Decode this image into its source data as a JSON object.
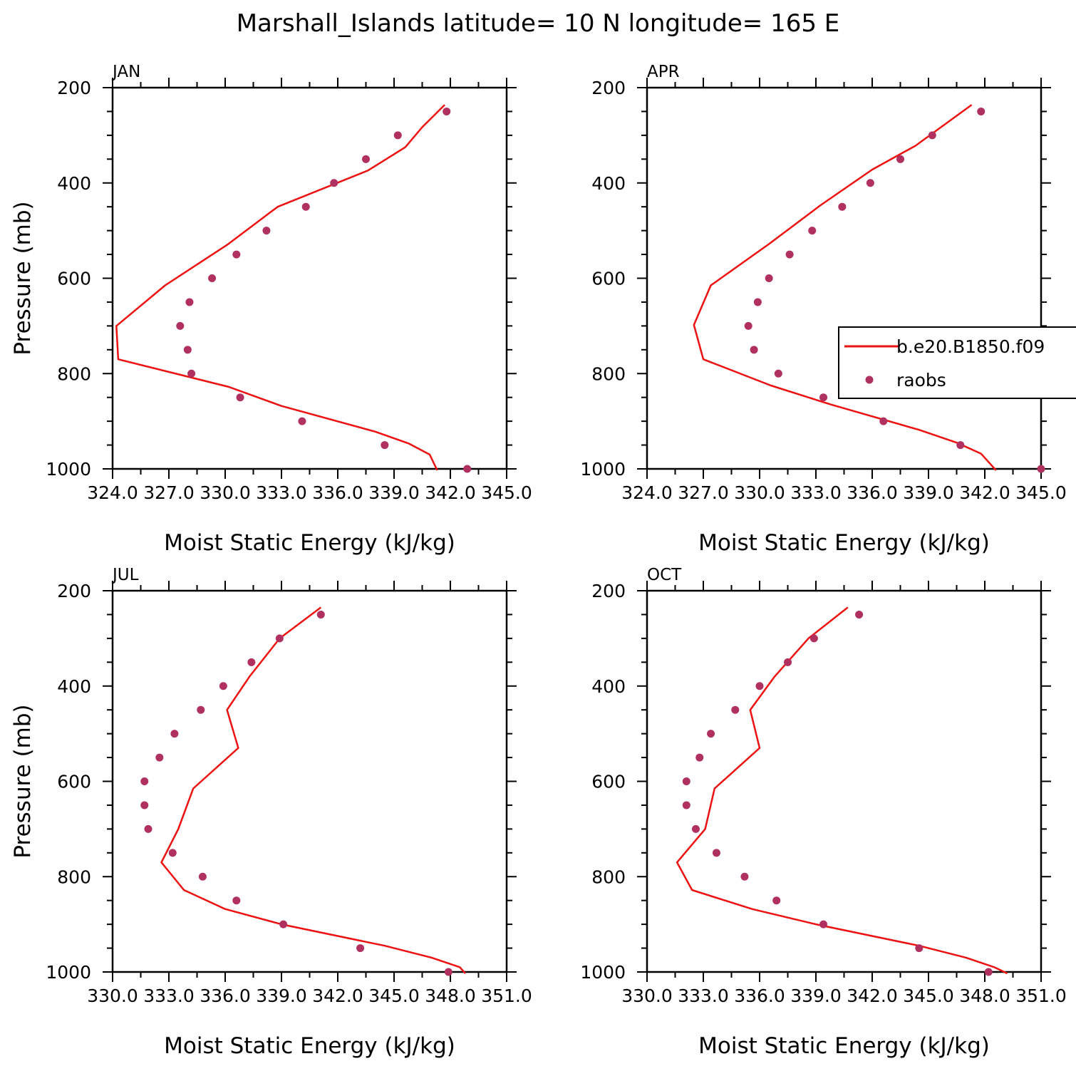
{
  "figure": {
    "title": "Marshall_Islands  latitude= 10 N longitude= 165 E"
  },
  "colors": {
    "model_line": "#ee1111",
    "obs_marker": "#b03060",
    "axis": "#000000"
  },
  "legend": {
    "placement": "right-middle of APR panel",
    "model_label": "b.e20.B1850.f09",
    "obs_label": "raobs"
  },
  "chart_data": [
    {
      "type": "line+scatter",
      "panel": "JAN",
      "title": "JAN",
      "xlabel": "Moist Static Energy (kJ/kg)",
      "ylabel": "Pressure (mb)",
      "xlim": [
        324.0,
        345.0
      ],
      "ylim": [
        1000,
        200
      ],
      "y_inverted": true,
      "x_ticks": [
        324.0,
        327.0,
        330.0,
        333.0,
        336.0,
        339.0,
        342.0,
        345.0
      ],
      "x_tick_labels": [
        "324.0",
        "327.0",
        "330.0",
        "333.0",
        "336.0",
        "339.0",
        "342.0",
        "345.0"
      ],
      "y_ticks": [
        200,
        400,
        600,
        800,
        1000
      ],
      "y_tick_labels": [
        "200",
        "400",
        "600",
        "800",
        "1000"
      ],
      "series": [
        {
          "name": "b.e20.B1850.f09",
          "style": "line",
          "x": [
            341.7,
            340.5,
            339.6,
            337.6,
            332.8,
            330.1,
            326.8,
            324.2,
            324.3,
            330.2,
            333.0,
            338.0,
            339.8,
            340.9,
            341.3
          ],
          "y": [
            236,
            283,
            325,
            374,
            450,
            530,
            615,
            700,
            770,
            828,
            868,
            922,
            947,
            970,
            1003
          ]
        },
        {
          "name": "raobs",
          "style": "points",
          "x": [
            341.8,
            339.2,
            337.5,
            335.8,
            334.3,
            332.2,
            330.6,
            329.3,
            328.1,
            327.6,
            328.0,
            328.2,
            330.8,
            334.1,
            338.5,
            342.9
          ],
          "y": [
            250,
            300,
            350,
            400,
            450,
            500,
            550,
            600,
            650,
            700,
            750,
            800,
            850,
            900,
            950,
            1000
          ]
        }
      ]
    },
    {
      "type": "line+scatter",
      "panel": "APR",
      "title": "APR",
      "xlabel": "Moist Static Energy (kJ/kg)",
      "ylabel": "",
      "xlim": [
        324.0,
        345.0
      ],
      "ylim": [
        1000,
        200
      ],
      "y_inverted": true,
      "x_ticks": [
        324.0,
        327.0,
        330.0,
        333.0,
        336.0,
        339.0,
        342.0,
        345.0
      ],
      "x_tick_labels": [
        "324.0",
        "327.0",
        "330.0",
        "333.0",
        "336.0",
        "339.0",
        "342.0",
        "345.0"
      ],
      "y_ticks": [
        200,
        400,
        600,
        800,
        1000
      ],
      "y_tick_labels": [
        "200",
        "400",
        "600",
        "800",
        "1000"
      ],
      "series": [
        {
          "name": "b.e20.B1850.f09",
          "style": "line",
          "x": [
            341.3,
            338.3,
            336.0,
            333.2,
            330.5,
            327.4,
            326.5,
            327.0,
            330.6,
            333.8,
            338.5,
            340.5,
            341.8,
            342.6
          ],
          "y": [
            236,
            322,
            372,
            448,
            528,
            615,
            698,
            770,
            825,
            865,
            918,
            945,
            968,
            1003
          ]
        },
        {
          "name": "raobs",
          "style": "points",
          "x": [
            341.8,
            339.2,
            337.5,
            335.9,
            334.4,
            332.8,
            331.6,
            330.5,
            329.9,
            329.4,
            329.7,
            331.0,
            333.4,
            336.6,
            340.7,
            345.0
          ],
          "y": [
            250,
            300,
            350,
            400,
            450,
            500,
            550,
            600,
            650,
            700,
            750,
            800,
            850,
            900,
            950,
            1000
          ]
        }
      ]
    },
    {
      "type": "line+scatter",
      "panel": "JUL",
      "title": "JUL",
      "xlabel": "Moist Static Energy (kJ/kg)",
      "ylabel": "Pressure (mb)",
      "xlim": [
        330.0,
        351.0
      ],
      "ylim": [
        1000,
        200
      ],
      "y_inverted": true,
      "x_ticks": [
        330.0,
        333.0,
        336.0,
        339.0,
        342.0,
        345.0,
        348.0,
        351.0
      ],
      "x_tick_labels": [
        "330.0",
        "333.0",
        "336.0",
        "339.0",
        "342.0",
        "345.0",
        "348.0",
        "351.0"
      ],
      "y_ticks": [
        200,
        400,
        600,
        800,
        1000
      ],
      "y_tick_labels": [
        "200",
        "400",
        "600",
        "800",
        "1000"
      ],
      "series": [
        {
          "name": "b.e20.B1850.f09",
          "style": "line",
          "x": [
            341.1,
            338.9,
            337.3,
            336.1,
            336.7,
            334.3,
            333.5,
            332.6,
            333.8,
            336.0,
            339.0,
            344.5,
            347.0,
            348.5,
            348.8
          ],
          "y": [
            235,
            300,
            380,
            450,
            530,
            615,
            700,
            770,
            828,
            868,
            900,
            945,
            970,
            990,
            1003
          ]
        },
        {
          "name": "raobs",
          "style": "points",
          "x": [
            341.1,
            338.9,
            337.4,
            335.9,
            334.7,
            333.3,
            332.5,
            331.7,
            331.7,
            331.9,
            333.2,
            334.8,
            336.6,
            339.1,
            343.2,
            347.9
          ],
          "y": [
            250,
            300,
            350,
            400,
            450,
            500,
            550,
            600,
            650,
            700,
            750,
            800,
            850,
            900,
            950,
            1000
          ]
        }
      ]
    },
    {
      "type": "line+scatter",
      "panel": "OCT",
      "title": "OCT",
      "xlabel": "Moist Static Energy (kJ/kg)",
      "ylabel": "",
      "xlim": [
        330.0,
        351.0
      ],
      "ylim": [
        1000,
        200
      ],
      "y_inverted": true,
      "x_ticks": [
        330.0,
        333.0,
        336.0,
        339.0,
        342.0,
        345.0,
        348.0,
        351.0
      ],
      "x_tick_labels": [
        "330.0",
        "333.0",
        "336.0",
        "339.0",
        "342.0",
        "345.0",
        "348.0",
        "351.0"
      ],
      "y_ticks": [
        200,
        400,
        600,
        800,
        1000
      ],
      "y_tick_labels": [
        "200",
        "400",
        "600",
        "800",
        "1000"
      ],
      "series": [
        {
          "name": "b.e20.B1850.f09",
          "style": "line",
          "x": [
            340.7,
            338.6,
            336.8,
            335.5,
            336.0,
            333.6,
            333.1,
            331.6,
            332.4,
            335.6,
            339.0,
            344.5,
            347.0,
            348.5,
            349.2
          ],
          "y": [
            235,
            300,
            380,
            450,
            530,
            615,
            700,
            770,
            828,
            868,
            900,
            945,
            970,
            990,
            1003
          ]
        },
        {
          "name": "raobs",
          "style": "points",
          "x": [
            341.3,
            338.9,
            337.5,
            336.0,
            334.7,
            333.4,
            332.8,
            332.1,
            332.1,
            332.6,
            333.7,
            335.2,
            336.9,
            339.4,
            344.5,
            348.2
          ],
          "y": [
            250,
            300,
            350,
            400,
            450,
            500,
            550,
            600,
            650,
            700,
            750,
            800,
            850,
            900,
            950,
            1000
          ]
        }
      ]
    }
  ]
}
